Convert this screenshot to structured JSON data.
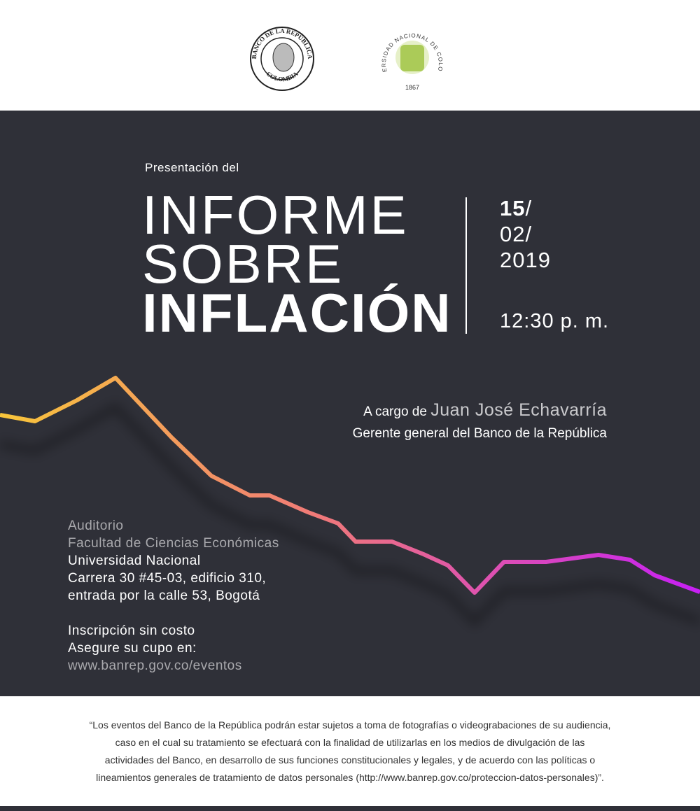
{
  "header": {
    "bank_logo": {
      "top": "BANCO DE LA REPÚBLICA",
      "bottom": "COLOMBIA"
    },
    "university_logo": {
      "ring": "UNIVERSIDAD NACIONAL DE COLOMBIA",
      "year": "1867"
    }
  },
  "event": {
    "intro": "Presentación del",
    "title": [
      "INFORME",
      "SOBRE",
      "INFLACIÓN"
    ],
    "date": {
      "day": "15",
      "day_sep": "/",
      "month": "02/",
      "year": "2019"
    },
    "time": "12:30 p. m.",
    "speaker": {
      "prefix": "A cargo de",
      "name": "Juan José Echavarría",
      "role": "Gerente general del Banco de la República"
    },
    "venue": [
      "Auditorio",
      "Facultad de Ciencias Económicas",
      "Universidad Nacional",
      "Carrera 30 #45-03, edificio 310,",
      "entrada por la calle 53, Bogotá"
    ],
    "registration": [
      "Inscripción sin costo",
      "Asegure su cupo en:"
    ],
    "url": "www.banrep.gov.co/eventos"
  },
  "footer": {
    "disclaimer": [
      "“Los eventos del Banco de la República podrán estar sujetos a toma de fotografías o videograbaciones de su audiencia,",
      "caso en el cual su tratamiento se efectuará con la finalidad de utilizarlas en los medios de divulgación de las",
      "actividades del Banco, en desarrollo de sus funciones constitucionales y legales, y de acuerdo con las políticas o",
      "lineamientos generales de tratamiento de datos personales (http://www.banrep.gov.co/proteccion-datos-personales)”."
    ]
  }
}
